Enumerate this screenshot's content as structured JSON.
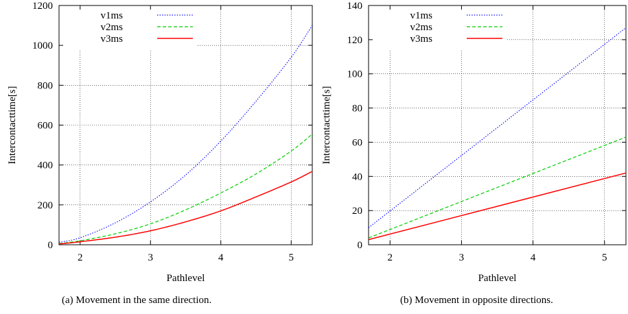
{
  "captions": {
    "a": "(a)  Movement in the same direction.",
    "b": "(b)  Movement in opposite directions."
  },
  "chart_data": [
    {
      "type": "line",
      "title": "",
      "xlabel": "Pathlevel",
      "ylabel": "Intercontacttime[s]",
      "xlim": [
        1.7,
        5.3
      ],
      "ylim": [
        0,
        1200
      ],
      "xticks": [
        2,
        3,
        4,
        5
      ],
      "yticks": [
        0,
        200,
        400,
        600,
        800,
        1000,
        1200
      ],
      "grid": true,
      "legend_position": "top-left",
      "series": [
        {
          "name": "v1ms",
          "color": "#0000ff",
          "style": "dotted",
          "x": [
            1.7,
            2.0,
            2.5,
            3.0,
            3.5,
            4.0,
            4.5,
            5.0,
            5.3
          ],
          "y": [
            12,
            35,
            110,
            215,
            350,
            520,
            720,
            940,
            1100
          ]
        },
        {
          "name": "v2ms",
          "color": "#00cc00",
          "style": "dashed",
          "x": [
            1.7,
            2.0,
            2.5,
            3.0,
            3.5,
            4.0,
            4.5,
            5.0,
            5.3
          ],
          "y": [
            6,
            20,
            55,
            105,
            175,
            260,
            355,
            470,
            555
          ]
        },
        {
          "name": "v3ms",
          "color": "#ff0000",
          "style": "solid",
          "x": [
            1.7,
            2.0,
            2.5,
            3.0,
            3.5,
            4.0,
            4.5,
            5.0,
            5.3
          ],
          "y": [
            4,
            15,
            38,
            70,
            115,
            170,
            240,
            315,
            368
          ]
        }
      ]
    },
    {
      "type": "line",
      "title": "",
      "xlabel": "Pathlevel",
      "ylabel": "Intercontacttime[s]",
      "xlim": [
        1.7,
        5.3
      ],
      "ylim": [
        0,
        140
      ],
      "xticks": [
        2,
        3,
        4,
        5
      ],
      "yticks": [
        0,
        20,
        40,
        60,
        80,
        100,
        120,
        140
      ],
      "grid": true,
      "legend_position": "top-left",
      "series": [
        {
          "name": "v1ms",
          "color": "#0000ff",
          "style": "dotted",
          "x": [
            1.7,
            5.3
          ],
          "y": [
            10,
            127
          ]
        },
        {
          "name": "v2ms",
          "color": "#00cc00",
          "style": "dashed",
          "x": [
            1.7,
            5.3
          ],
          "y": [
            4,
            63
          ]
        },
        {
          "name": "v3ms",
          "color": "#ff0000",
          "style": "solid",
          "x": [
            1.7,
            5.3
          ],
          "y": [
            3,
            42
          ]
        }
      ]
    }
  ]
}
